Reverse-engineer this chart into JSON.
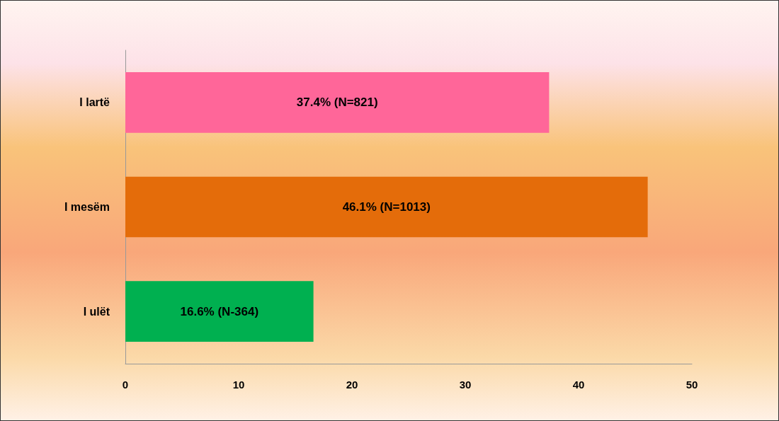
{
  "chart_data": {
    "type": "bar",
    "orientation": "horizontal",
    "categories": [
      "I lartë",
      "I mesëm",
      "I ulët"
    ],
    "values": [
      37.4,
      46.1,
      16.6
    ],
    "colors": [
      "#ff6699",
      "#e46c0a",
      "#00b050"
    ],
    "value_labels": [
      "37.4% (N=821)",
      "46.1% (N=1013)",
      "16.6% (N-364)"
    ],
    "xlim": [
      0,
      50
    ],
    "xticks": [
      0,
      10,
      20,
      30,
      40,
      50
    ],
    "grid": false
  }
}
